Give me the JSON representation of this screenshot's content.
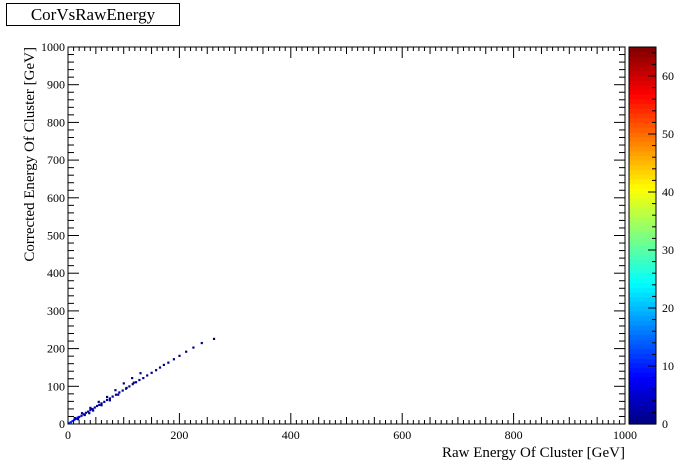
{
  "chart_data": {
    "type": "heatmap",
    "title": "CorVsRawEnergy",
    "xlabel": "Raw Energy Of Cluster [GeV]",
    "ylabel": "Corrected Energy Of Cluster [GeV]",
    "xlim": [
      0,
      1000
    ],
    "ylim": [
      0,
      1000
    ],
    "x_ticks": [
      0,
      200,
      400,
      600,
      800,
      1000
    ],
    "y_ticks": [
      0,
      100,
      200,
      300,
      400,
      500,
      600,
      700,
      800,
      900,
      1000
    ],
    "z_range": [
      0,
      65
    ],
    "z_ticks": [
      0,
      10,
      20,
      30,
      40,
      50,
      60
    ],
    "colormap": [
      "#00007f",
      "#0000ff",
      "#007fff",
      "#00ffff",
      "#7fff7f",
      "#ffff00",
      "#ff7f00",
      "#ff0000",
      "#7f0000"
    ],
    "grid": false,
    "points": [
      [
        2,
        3,
        60
      ],
      [
        5,
        5,
        55
      ],
      [
        8,
        8,
        50
      ],
      [
        11,
        11,
        45
      ],
      [
        14,
        14,
        40
      ],
      [
        17,
        17,
        35
      ],
      [
        20,
        19,
        30
      ],
      [
        24,
        22,
        26
      ],
      [
        28,
        26,
        22
      ],
      [
        32,
        30,
        20
      ],
      [
        36,
        33,
        18
      ],
      [
        40,
        37,
        16
      ],
      [
        44,
        40,
        14
      ],
      [
        48,
        44,
        12
      ],
      [
        52,
        48,
        11
      ],
      [
        56,
        51,
        10
      ],
      [
        60,
        55,
        9
      ],
      [
        65,
        59,
        8
      ],
      [
        70,
        64,
        7
      ],
      [
        75,
        68,
        6
      ],
      [
        80,
        73,
        5
      ],
      [
        86,
        78,
        5
      ],
      [
        92,
        84,
        4
      ],
      [
        98,
        89,
        4
      ],
      [
        104,
        94,
        3
      ],
      [
        110,
        100,
        3
      ],
      [
        116,
        106,
        3
      ],
      [
        122,
        111,
        2
      ],
      [
        128,
        117,
        2
      ],
      [
        135,
        122,
        2
      ],
      [
        142,
        129,
        2
      ],
      [
        150,
        136,
        2
      ],
      [
        158,
        143,
        1
      ],
      [
        165,
        150,
        1
      ],
      [
        172,
        157,
        1
      ],
      [
        180,
        163,
        1
      ],
      [
        190,
        172,
        1
      ],
      [
        200,
        181,
        1
      ],
      [
        212,
        192,
        1
      ],
      [
        225,
        203,
        1
      ],
      [
        240,
        215,
        1
      ],
      [
        262,
        226,
        1
      ],
      [
        30,
        24,
        3
      ],
      [
        45,
        36,
        3
      ],
      [
        60,
        50,
        2
      ],
      [
        75,
        63,
        2
      ],
      [
        90,
        78,
        2
      ],
      [
        105,
        96,
        2
      ],
      [
        118,
        110,
        1
      ],
      [
        25,
        29,
        3
      ],
      [
        40,
        43,
        2
      ],
      [
        55,
        59,
        2
      ],
      [
        70,
        72,
        2
      ],
      [
        85,
        90,
        1
      ],
      [
        100,
        108,
        1
      ],
      [
        115,
        122,
        1
      ],
      [
        130,
        135,
        1
      ],
      [
        12,
        16,
        8
      ],
      [
        18,
        13,
        8
      ],
      [
        38,
        29,
        3
      ]
    ]
  }
}
